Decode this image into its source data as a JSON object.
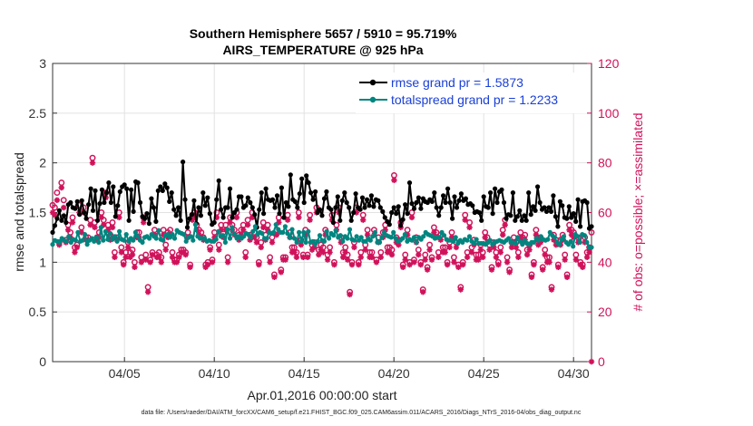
{
  "chart_data": {
    "type": "line",
    "title": "Southern Hemisphere 5657 / 5910 = 95.719%",
    "subtitle": "AIRS_TEMPERATURE @ 925 hPa",
    "xlabel": "Apr.01,2016 00:00:00 start",
    "ylabel_left": "rmse and totalspread",
    "ylabel_right": "# of obs: o=possible; ×=assimilated",
    "footer": "data file: /Users/raeder/DAI/ATM_forcXX/CAM6_setup/f.e21.FHIST_BGC.f09_025.CAM6assim.011/ACARS_2016/Diags_NTrS_2016-04/obs_diag_output.nc",
    "x_range": [
      1,
      31
    ],
    "ylim_left": [
      0,
      3
    ],
    "ylim_right": [
      0,
      120
    ],
    "x_ticks": [
      {
        "value": 5,
        "label": "04/05"
      },
      {
        "value": 10,
        "label": "04/10"
      },
      {
        "value": 15,
        "label": "04/15"
      },
      {
        "value": 20,
        "label": "04/20"
      },
      {
        "value": 25,
        "label": "04/25"
      },
      {
        "value": 30,
        "label": "04/30"
      }
    ],
    "y_ticks_left": [
      {
        "value": 0,
        "label": "0"
      },
      {
        "value": 0.5,
        "label": "0.5"
      },
      {
        "value": 1,
        "label": "1"
      },
      {
        "value": 1.5,
        "label": "1.5"
      },
      {
        "value": 2,
        "label": "2"
      },
      {
        "value": 2.5,
        "label": "2.5"
      },
      {
        "value": 3,
        "label": "3"
      }
    ],
    "y_ticks_right": [
      {
        "value": 0,
        "label": "0"
      },
      {
        "value": 20,
        "label": "20"
      },
      {
        "value": 40,
        "label": "40"
      },
      {
        "value": 60,
        "label": "60"
      },
      {
        "value": 80,
        "label": "80"
      },
      {
        "value": 100,
        "label": "100"
      },
      {
        "value": 120,
        "label": "120"
      }
    ],
    "grid": true,
    "legend_position": "top-right",
    "series": [
      {
        "name": "rmse grand pr = 1.5873",
        "color": "#000000",
        "marker": "filled-circle",
        "axis": "left",
        "values": [
          1.3,
          1.37,
          1.44,
          1.52,
          1.42,
          1.47,
          1.4,
          1.58,
          1.6,
          1.55,
          1.54,
          1.61,
          1.48,
          1.62,
          1.5,
          1.44,
          1.58,
          1.74,
          1.52,
          1.72,
          1.42,
          1.59,
          1.73,
          1.6,
          1.7,
          1.8,
          1.6,
          1.76,
          1.46,
          1.57,
          1.71,
          1.76,
          1.78,
          1.74,
          1.42,
          1.73,
          1.51,
          1.81,
          1.8,
          1.6,
          1.46,
          1.44,
          1.49,
          1.39,
          1.64,
          1.55,
          1.41,
          1.72,
          1.76,
          1.72,
          1.79,
          1.75,
          1.61,
          1.7,
          1.53,
          1.47,
          1.55,
          1.42,
          2.01,
          1.63,
          1.35,
          1.44,
          1.48,
          1.62,
          1.39,
          1.55,
          1.47,
          1.7,
          1.57,
          1.65,
          1.49,
          1.38,
          1.4,
          1.63,
          1.82,
          1.53,
          1.45,
          1.55,
          1.55,
          1.74,
          1.45,
          1.5,
          1.53,
          1.66,
          1.66,
          1.55,
          1.57,
          1.65,
          1.6,
          1.55,
          1.48,
          1.35,
          1.53,
          1.7,
          1.49,
          1.74,
          1.63,
          1.62,
          1.63,
          1.55,
          1.67,
          1.49,
          1.75,
          1.45,
          1.6,
          1.56,
          1.88,
          1.63,
          1.61,
          1.55,
          1.69,
          1.84,
          1.6,
          1.87,
          1.8,
          1.7,
          1.63,
          1.71,
          1.5,
          1.53,
          1.47,
          1.64,
          1.71,
          1.55,
          1.53,
          1.4,
          1.55,
          1.66,
          1.42,
          1.62,
          1.7,
          1.6,
          1.55,
          1.42,
          1.5,
          1.69,
          1.55,
          1.53,
          1.65,
          1.55,
          1.63,
          1.57,
          1.67,
          1.56,
          1.63,
          1.62,
          1.55,
          1.51,
          1.45,
          1.41,
          1.38,
          1.5,
          1.55,
          1.49,
          1.56,
          1.37,
          1.43,
          1.58,
          1.49,
          1.8,
          1.59,
          1.54,
          1.6,
          1.65,
          1.54,
          1.64,
          1.61,
          1.6,
          1.63,
          1.61,
          1.7,
          1.55,
          1.47,
          1.55,
          1.67,
          1.6,
          1.74,
          1.6,
          1.44,
          1.66,
          1.55,
          1.62,
          1.69,
          1.62,
          1.64,
          1.58,
          1.59,
          1.57,
          1.5,
          1.51,
          1.5,
          1.42,
          1.66,
          1.56,
          1.55,
          1.7,
          1.49,
          1.74,
          1.6,
          1.71,
          1.73,
          1.6,
          1.44,
          1.48,
          1.47,
          1.7,
          1.42,
          1.46,
          1.52,
          1.42,
          1.47,
          1.42,
          1.7,
          1.48,
          1.56,
          1.52,
          1.76,
          1.6,
          1.53,
          1.55,
          1.51,
          1.55,
          1.51,
          1.67,
          1.46,
          1.36,
          1.61,
          1.57,
          1.45,
          1.44,
          1.56,
          1.45,
          1.49,
          1.41,
          1.63,
          1.36,
          1.61,
          1.62,
          1.6,
          1.34,
          1.36
        ]
      },
      {
        "name": "totalspread grand pr = 1.2233",
        "color": "#00857f",
        "marker": "filled-circle",
        "axis": "left",
        "values": [
          1.18,
          1.22,
          1.21,
          1.2,
          1.24,
          1.22,
          1.21,
          1.26,
          1.2,
          1.23,
          1.22,
          1.3,
          1.21,
          1.22,
          1.28,
          1.18,
          1.22,
          1.24,
          1.21,
          1.25,
          1.2,
          1.35,
          1.22,
          1.31,
          1.23,
          1.29,
          1.23,
          1.26,
          1.21,
          1.31,
          1.23,
          1.22,
          1.28,
          1.21,
          1.24,
          1.22,
          1.3,
          1.26,
          1.22,
          1.2,
          1.25,
          1.26,
          1.24,
          1.28,
          1.26,
          1.24,
          1.32,
          1.23,
          1.22,
          1.27,
          1.28,
          1.25,
          1.28,
          1.24,
          1.32,
          1.3,
          1.29,
          1.28,
          1.21,
          1.25,
          1.26,
          1.22,
          1.38,
          1.26,
          1.24,
          1.24,
          1.24,
          1.21,
          1.22,
          1.21,
          1.21,
          1.23,
          1.31,
          1.26,
          1.27,
          1.2,
          1.33,
          1.24,
          1.35,
          1.28,
          1.24,
          1.26,
          1.24,
          1.26,
          1.29,
          1.28,
          1.25,
          1.31,
          1.36,
          1.28,
          1.3,
          1.29,
          1.24,
          1.24,
          1.3,
          1.29,
          1.3,
          1.38,
          1.33,
          1.3,
          1.3,
          1.36,
          1.29,
          1.25,
          1.33,
          1.24,
          1.2,
          1.3,
          1.21,
          1.3,
          1.2,
          1.31,
          1.2,
          1.21,
          1.18,
          1.21,
          1.27,
          1.22,
          1.21,
          1.31,
          1.24,
          1.29,
          1.27,
          1.32,
          1.25,
          1.27,
          1.21,
          1.26,
          1.24,
          1.33,
          1.23,
          1.22,
          1.26,
          1.22,
          1.25,
          1.21,
          1.21,
          1.24,
          1.22,
          1.26,
          1.3,
          1.2,
          1.2,
          1.25,
          1.3,
          1.27,
          1.26,
          1.25,
          1.3,
          1.24,
          1.21,
          1.22,
          1.24,
          1.28,
          1.21,
          1.23,
          1.22,
          1.25,
          1.2,
          1.25,
          1.23,
          1.26,
          1.3,
          1.28,
          1.27,
          1.26,
          1.24,
          1.25,
          1.25,
          1.3,
          1.27,
          1.23,
          1.22,
          1.22,
          1.21,
          1.25,
          1.19,
          1.22,
          1.2,
          1.23,
          1.22,
          1.26,
          1.21,
          1.19,
          1.23,
          1.19,
          1.19,
          1.19,
          1.18,
          1.2,
          1.22,
          1.18,
          1.2,
          1.21,
          1.22,
          1.21,
          1.2,
          1.22,
          1.24,
          1.2,
          1.2,
          1.19,
          1.25,
          1.21,
          1.18,
          1.22,
          1.19,
          1.18,
          1.2,
          1.2,
          1.24,
          1.22,
          1.26,
          1.23,
          1.22,
          1.23,
          1.3,
          1.27,
          1.25,
          1.2,
          1.18,
          1.23,
          1.26,
          1.2,
          1.18,
          1.21,
          1.16,
          1.28,
          1.26,
          1.2,
          1.28,
          1.27,
          1.2,
          1.15,
          1.15
        ]
      },
      {
        "name": "obs possible",
        "color": "#d0125a",
        "marker": "open-circle",
        "axis": "right",
        "values": [
          63,
          62,
          68,
          48,
          72,
          65,
          49,
          55,
          52,
          58,
          46,
          47,
          63,
          54,
          62,
          50,
          50,
          57,
          82,
          56,
          50,
          52,
          60,
          57,
          68,
          55,
          51,
          56,
          44,
          50,
          60,
          46,
          40,
          44,
          48,
          44,
          45,
          40,
          52,
          52,
          42,
          58,
          43,
          30,
          41,
          44,
          53,
          43,
          44,
          42,
          53,
          47,
          52,
          53,
          44,
          41,
          41,
          43,
          45,
          45,
          44,
          52,
          39,
          59,
          60,
          55,
          53,
          52,
          50,
          39,
          40,
          46,
          41,
          52,
          60,
          47,
          55,
          52,
          55,
          42,
          58,
          55,
          53,
          60,
          51,
          53,
          55,
          44,
          57,
          51,
          60,
          52,
          50,
          40,
          48,
          56,
          51,
          55,
          42,
          50,
          35,
          53,
          58,
          37,
          42,
          42,
          59,
          52,
          46,
          46,
          44,
          60,
          49,
          43,
          53,
          43,
          59,
          47,
          48,
          62,
          45,
          47,
          46,
          53,
          43,
          46,
          59,
          40,
          55,
          62,
          50,
          44,
          46,
          43,
          28,
          40,
          48,
          62,
          40,
          44,
          59,
          47,
          53,
          44,
          44,
          53,
          41,
          50,
          44,
          52,
          55,
          46,
          46,
          45,
          75,
          50,
          49,
          56,
          39,
          43,
          53,
          40,
          60,
          41,
          50,
          45,
          40,
          29,
          43,
          38,
          47,
          42,
          54,
          52,
          44,
          51,
          46,
          46,
          40,
          48,
          52,
          42,
          48,
          39,
          30,
          40,
          59,
          44,
          56,
          46,
          49,
          43,
          43,
          47,
          44,
          52,
          50,
          47,
          38,
          48,
          44,
          40,
          46,
          53,
          57,
          42,
          37,
          48,
          50,
          48,
          44,
          52,
          50,
          51,
          45,
          47,
          35,
          40,
          53,
          49,
          50,
          38,
          45,
          42,
          42,
          30,
          51,
          49,
          39,
          49,
          51,
          43,
          35,
          55,
          53,
          52,
          43,
          50,
          40,
          39,
          50,
          44,
          46,
          52
        ]
      },
      {
        "name": "obs assimilated",
        "color": "#d0125a",
        "marker": "asterisk",
        "axis": "right",
        "values": [
          60,
          59,
          65,
          47,
          70,
          62,
          48,
          53,
          50,
          56,
          44,
          46,
          60,
          52,
          60,
          49,
          49,
          55,
          80,
          54,
          49,
          50,
          58,
          55,
          66,
          53,
          49,
          54,
          42,
          49,
          58,
          44,
          39,
          42,
          46,
          42,
          43,
          38,
          50,
          50,
          40,
          56,
          41,
          28,
          40,
          43,
          51,
          42,
          42,
          40,
          51,
          45,
          50,
          51,
          42,
          40,
          40,
          42,
          44,
          44,
          43,
          50,
          38,
          57,
          58,
          53,
          51,
          50,
          49,
          38,
          39,
          45,
          40,
          50,
          58,
          45,
          53,
          50,
          53,
          40,
          56,
          53,
          51,
          58,
          49,
          51,
          53,
          42,
          55,
          49,
          58,
          50,
          48,
          39,
          46,
          54,
          49,
          53,
          40,
          48,
          34,
          51,
          56,
          36,
          41,
          41,
          57,
          50,
          44,
          44,
          42,
          58,
          47,
          42,
          51,
          42,
          57,
          45,
          46,
          60,
          43,
          45,
          44,
          51,
          41,
          44,
          57,
          39,
          53,
          60,
          48,
          42,
          44,
          41,
          27,
          39,
          46,
          60,
          39,
          42,
          57,
          45,
          51,
          42,
          42,
          51,
          40,
          48,
          42,
          50,
          53,
          44,
          44,
          43,
          73,
          48,
          47,
          54,
          38,
          41,
          51,
          39,
          58,
          40,
          48,
          43,
          39,
          28,
          41,
          37,
          45,
          41,
          52,
          50,
          42,
          49,
          44,
          44,
          39,
          46,
          50,
          40,
          46,
          38,
          29,
          39,
          57,
          42,
          54,
          44,
          47,
          41,
          41,
          45,
          42,
          50,
          48,
          45,
          37,
          46,
          42,
          39,
          44,
          51,
          55,
          40,
          36,
          46,
          48,
          46,
          42,
          50,
          48,
          49,
          43,
          45,
          34,
          39,
          51,
          47,
          48,
          37,
          43,
          40,
          40,
          29,
          49,
          47,
          38,
          47,
          49,
          41,
          34,
          53,
          51,
          50,
          41,
          48,
          39,
          38,
          48,
          42,
          44,
          0
        ]
      }
    ]
  }
}
